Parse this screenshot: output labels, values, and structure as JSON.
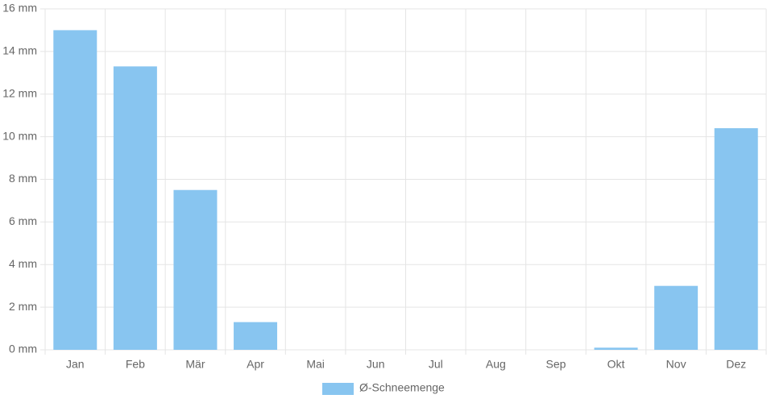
{
  "chart_data": {
    "type": "bar",
    "categories": [
      "Jan",
      "Feb",
      "Mär",
      "Apr",
      "Mai",
      "Jun",
      "Jul",
      "Aug",
      "Sep",
      "Okt",
      "Nov",
      "Dez"
    ],
    "series": [
      {
        "name": "Ø-Schneemenge",
        "color": "#88c5f0",
        "values": [
          15,
          13.3,
          7.5,
          1.3,
          0,
          0,
          0,
          0,
          0,
          0.1,
          3.0,
          10.4
        ]
      }
    ],
    "ylim": [
      0,
      16
    ],
    "yticks": [
      {
        "value": 0,
        "label": "0 mm"
      },
      {
        "value": 2,
        "label": "2 mm"
      },
      {
        "value": 4,
        "label": "4 mm"
      },
      {
        "value": 6,
        "label": "6 mm"
      },
      {
        "value": 8,
        "label": "8 mm"
      },
      {
        "value": 10,
        "label": "10 mm"
      },
      {
        "value": 12,
        "label": "12 mm"
      },
      {
        "value": 14,
        "label": "14 mm"
      },
      {
        "value": 16,
        "label": "16 mm"
      }
    ],
    "grid": true,
    "legend": "bottom"
  }
}
